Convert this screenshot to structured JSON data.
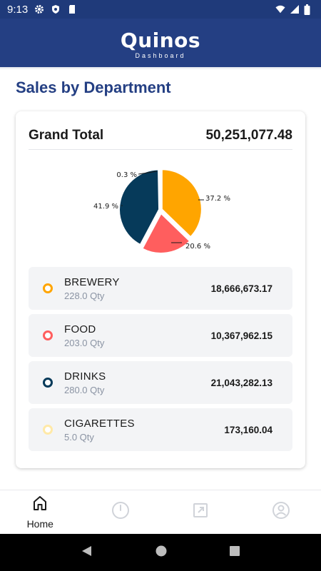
{
  "status_bar": {
    "time": "9:13"
  },
  "header": {
    "brand": "Quinos",
    "subtitle": "Dashboard"
  },
  "section": {
    "title": "Sales by Department"
  },
  "summary": {
    "grand_total_label": "Grand Total",
    "grand_total_value": "50,251,077.48"
  },
  "chart_data": {
    "type": "pie",
    "slices": [
      {
        "name": "BREWERY",
        "percent": 37.2,
        "label": "37.2 %",
        "color": "#FFA500"
      },
      {
        "name": "FOOD",
        "percent": 20.6,
        "label": "20.6 %",
        "color": "#FF5E5E"
      },
      {
        "name": "DRINKS",
        "percent": 41.9,
        "label": "41.9 %",
        "color": "#063A5A"
      },
      {
        "name": "CIGARETTES",
        "percent": 0.3,
        "label": "0.3 %",
        "color": "#FFE9A8"
      }
    ]
  },
  "departments": [
    {
      "name": "BREWERY",
      "qty": "228.0 Qty",
      "amount": "18,666,673.17",
      "color": "#FFA500"
    },
    {
      "name": "FOOD",
      "qty": "203.0 Qty",
      "amount": "10,367,962.15",
      "color": "#FF5E5E"
    },
    {
      "name": "DRINKS",
      "qty": "280.0 Qty",
      "amount": "21,043,282.13",
      "color": "#063A5A"
    },
    {
      "name": "CIGARETTES",
      "qty": "5.0 Qty",
      "amount": "173,160.04",
      "color": "#FFE9A8"
    }
  ],
  "bottom_nav": {
    "items": [
      {
        "label": "Home",
        "icon": "home-icon"
      },
      {
        "label": "",
        "icon": "clock-icon"
      },
      {
        "label": "",
        "icon": "external-link-icon"
      },
      {
        "label": "",
        "icon": "account-icon"
      }
    ]
  }
}
